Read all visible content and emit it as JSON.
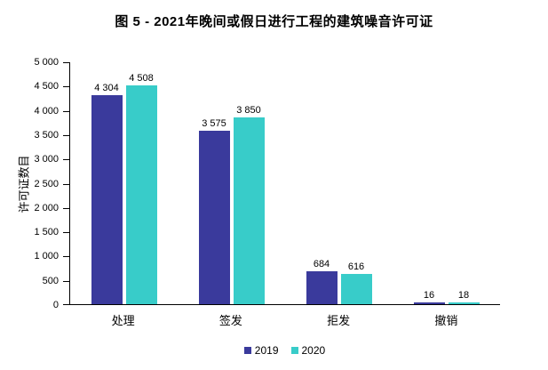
{
  "title": "图 5 - 2021年晚间或假日进行工程的建筑噪音许可证",
  "colors": {
    "series_2019": "#3A3A9C",
    "series_2020": "#38CCC9",
    "axis": "#000000",
    "text": "#000000",
    "background": "#FFFFFF"
  },
  "y_axis": {
    "label": "许可证数目",
    "tick_labels": [
      "5 000",
      "4 500",
      "4 000",
      "3 500",
      "3 000",
      "2 500",
      "2 000",
      "1 500",
      "1 000",
      "500",
      "0"
    ]
  },
  "chart_data": {
    "type": "bar",
    "title": "图 5 - 2021年晚间或假日进行工程的建筑噪音许可证",
    "categories": [
      "处理",
      "签发",
      "拒发",
      "撤销"
    ],
    "series": [
      {
        "name": "2019",
        "color": "#3A3A9C",
        "values": [
          4304,
          3575,
          684,
          16
        ],
        "labels": [
          "4 304",
          "3 575",
          "684",
          "16"
        ]
      },
      {
        "name": "2020",
        "color": "#38CCC9",
        "values": [
          4508,
          3850,
          616,
          18
        ],
        "labels": [
          "4 508",
          "3 850",
          "616",
          "18"
        ]
      }
    ],
    "xlabel": "",
    "ylabel": "许可证数目",
    "ylim": [
      0,
      5000
    ],
    "ytick_step": 500,
    "grid": false,
    "legend_position": "bottom",
    "data_labels": true
  }
}
